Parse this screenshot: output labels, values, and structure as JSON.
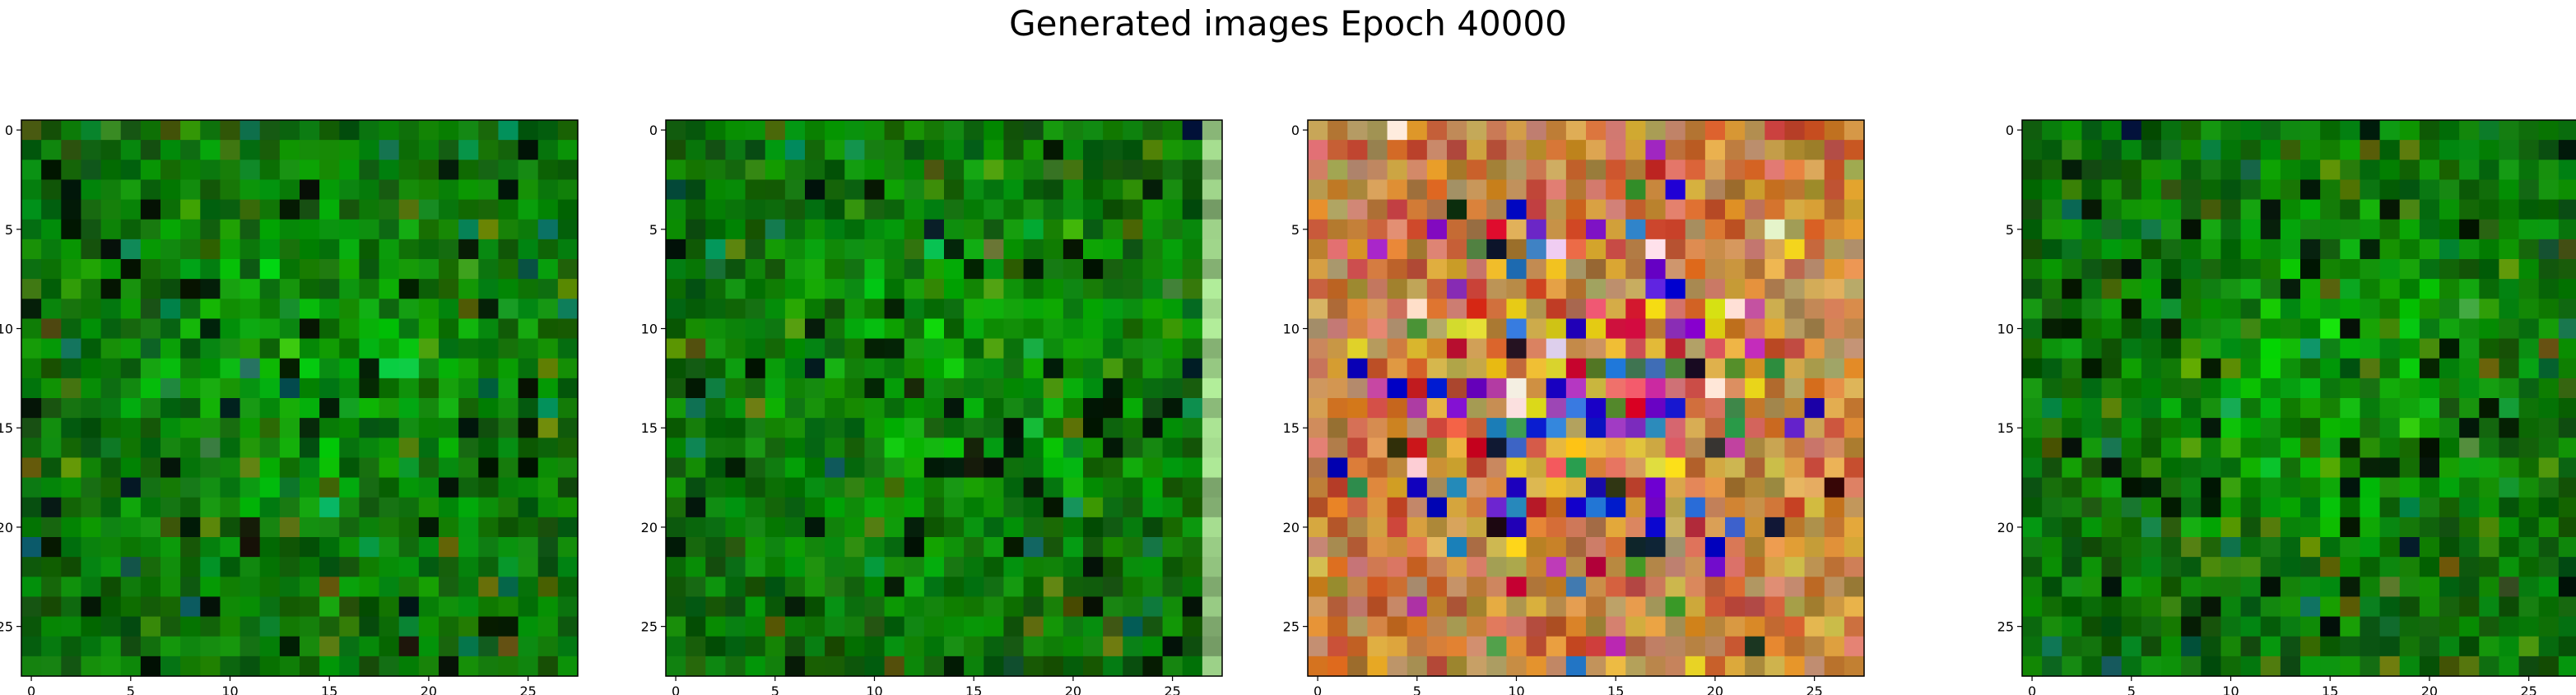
{
  "figure": {
    "title": "Generated images Epoch 40000"
  },
  "chart_data": [
    {
      "type": "heatmap",
      "title": "",
      "xlabel": "",
      "ylabel": "",
      "grid": false,
      "xlim": [
        -0.5,
        27.5
      ],
      "ylim": [
        27.5,
        -0.5
      ],
      "x_ticks": [
        0,
        5,
        10,
        15,
        20,
        25
      ],
      "y_ticks": [
        0,
        5,
        10,
        15,
        20,
        25
      ],
      "shape": [
        28,
        28
      ],
      "palette": "greens",
      "seed": 11,
      "bright_column": false
    },
    {
      "type": "heatmap",
      "title": "",
      "xlabel": "",
      "ylabel": "",
      "grid": false,
      "xlim": [
        -0.5,
        27.5
      ],
      "ylim": [
        27.5,
        -0.5
      ],
      "x_ticks": [
        0,
        5,
        10,
        15,
        20,
        25
      ],
      "y_ticks": [
        0,
        5,
        10,
        15,
        20,
        25
      ],
      "shape": [
        28,
        28
      ],
      "palette": "greens",
      "seed": 29,
      "bright_column": true
    },
    {
      "type": "heatmap",
      "title": "",
      "xlabel": "",
      "ylabel": "",
      "grid": false,
      "xlim": [
        -0.5,
        27.5
      ],
      "ylim": [
        27.5,
        -0.5
      ],
      "x_ticks": [
        0,
        5,
        10,
        15,
        20,
        25
      ],
      "y_ticks": [
        0,
        5,
        10,
        15,
        20,
        25
      ],
      "shape": [
        28,
        28
      ],
      "palette": "multicolor",
      "seed": 47,
      "bright_column": false
    },
    {
      "type": "heatmap",
      "title": "",
      "xlabel": "",
      "ylabel": "",
      "grid": false,
      "xlim": [
        -0.5,
        27.5
      ],
      "ylim": [
        27.5,
        -0.5
      ],
      "x_ticks": [
        0,
        5,
        10,
        15,
        20,
        25
      ],
      "y_ticks": [
        0,
        5,
        10,
        15,
        20,
        25
      ],
      "shape": [
        28,
        28
      ],
      "palette": "greens",
      "seed": 83,
      "bright_column": false
    }
  ]
}
